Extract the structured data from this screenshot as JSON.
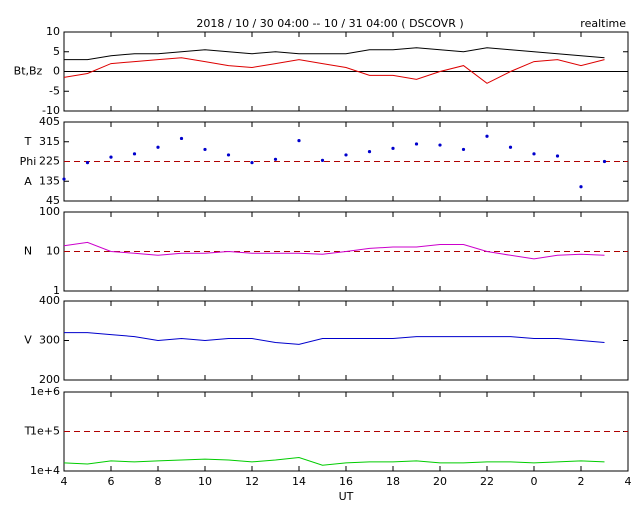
{
  "header": {
    "title": "2018 / 10 / 30   04:00 -- 10 / 31   04:00  ( DSCOVR )",
    "status": "realtime"
  },
  "x_axis": {
    "label": "UT",
    "xlim": [
      4,
      28
    ],
    "xticks": [
      4,
      6,
      8,
      10,
      12,
      14,
      16,
      18,
      20,
      22,
      {
        "value": 24,
        "label": "0"
      },
      {
        "value": 26,
        "label": "2"
      },
      {
        "value": 28,
        "label": "4"
      }
    ],
    "x": [
      4,
      5,
      6,
      7,
      8,
      9,
      10,
      11,
      12,
      13,
      14,
      15,
      16,
      17,
      18,
      19,
      20,
      21,
      22,
      23,
      24,
      25,
      26,
      27
    ]
  },
  "chart_data": [
    {
      "type": "line",
      "ylabel": [
        "Bt,Bz"
      ],
      "ylim": [
        -10,
        10
      ],
      "yticks": [
        10,
        5,
        0,
        -5,
        -10
      ],
      "log_y": false,
      "reference_line": {
        "value": 0,
        "color": "#000000",
        "dashed": false
      },
      "series": [
        {
          "name": "Bt",
          "color": "#000000",
          "values": [
            3,
            3,
            4,
            4.5,
            4.5,
            5,
            5.5,
            5,
            4.5,
            5,
            4.5,
            4.5,
            4.5,
            5.5,
            5.5,
            6,
            5.5,
            5,
            6,
            5.5,
            5,
            4.5,
            4,
            3.5
          ]
        },
        {
          "name": "Bz",
          "color": "#dd0000",
          "values": [
            -1.5,
            -0.5,
            2,
            2.5,
            3,
            3.5,
            2.5,
            1.5,
            1,
            2,
            3,
            2,
            1,
            -1,
            -1,
            -2,
            0,
            1.5,
            -3,
            0,
            2.5,
            3,
            1.5,
            3
          ]
        }
      ]
    },
    {
      "type": "scatter",
      "ylabel": [
        "T",
        "Phi",
        "A"
      ],
      "ylim": [
        45,
        405
      ],
      "yticks": [
        405,
        315,
        225,
        135,
        45
      ],
      "log_y": false,
      "reference_line": {
        "value": 225,
        "color": "#b00000",
        "dashed": true
      },
      "series": [
        {
          "name": "Phi",
          "color": "#0000cc",
          "values": [
            145,
            220,
            245,
            260,
            290,
            330,
            280,
            255,
            220,
            235,
            320,
            230,
            255,
            270,
            285,
            305,
            300,
            280,
            340,
            290,
            260,
            250,
            110,
            225
          ]
        }
      ]
    },
    {
      "type": "line",
      "ylabel": [
        "N"
      ],
      "ylim": [
        1,
        100
      ],
      "yticks": [
        100,
        10,
        1
      ],
      "log_y": true,
      "reference_line": {
        "value": 10,
        "color": "#b00000",
        "dashed": true
      },
      "series": [
        {
          "name": "N",
          "color": "#cc00cc",
          "values": [
            14,
            17,
            10,
            9,
            8,
            9,
            9,
            10,
            9,
            9,
            9,
            8.5,
            10,
            12,
            13,
            13,
            15,
            15,
            10,
            8,
            6.5,
            8,
            8.5,
            8
          ]
        }
      ]
    },
    {
      "type": "line",
      "ylabel": [
        "V"
      ],
      "ylim": [
        200,
        400
      ],
      "yticks": [
        400,
        300,
        200
      ],
      "log_y": false,
      "series": [
        {
          "name": "V",
          "color": "#0000cc",
          "values": [
            320,
            320,
            315,
            310,
            300,
            305,
            300,
            305,
            305,
            295,
            290,
            305,
            305,
            305,
            305,
            310,
            310,
            310,
            310,
            310,
            305,
            305,
            300,
            295
          ]
        }
      ]
    },
    {
      "type": "line",
      "ylabel": [
        "T"
      ],
      "ylim": [
        10000,
        1000000
      ],
      "log_y": true,
      "yticks": [
        {
          "value": 1000000,
          "label": "1e+6"
        },
        {
          "value": 100000,
          "label": "1e+5"
        },
        {
          "value": 10000,
          "label": "1e+4"
        }
      ],
      "reference_line": {
        "value": 100000,
        "color": "#b00000",
        "dashed": true
      },
      "series": [
        {
          "name": "T",
          "color": "#00cc00",
          "values": [
            16000,
            15000,
            18000,
            17000,
            18000,
            19000,
            20000,
            19000,
            17000,
            19000,
            22000,
            14000,
            16000,
            17000,
            17000,
            18000,
            16000,
            16000,
            17000,
            17000,
            16000,
            17000,
            18000,
            17000
          ]
        }
      ]
    }
  ]
}
